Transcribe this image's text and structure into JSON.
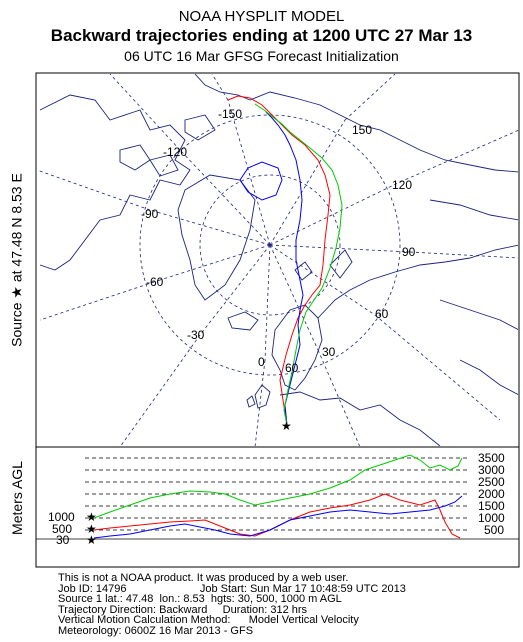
{
  "header": {
    "title": "NOAA HYSPLIT MODEL",
    "subtitle": "Backward trajectories ending at 1200 UTC 27 Mar 13",
    "init": "06 UTC 16 Mar    GFSG  Forecast Initialization"
  },
  "side_label": "Source ★ at   47.48 N    8.53 E",
  "vertical_axis_label": "Meters AGL",
  "map": {
    "longitude_labels": [
      "-150",
      "150",
      "-120",
      "120",
      "-90",
      "90",
      "-60",
      "60",
      "-30",
      "30",
      "0",
      "60"
    ],
    "source_marker": "★",
    "colors": {
      "traj_1": "#ff0000",
      "traj_2": "#0000ff",
      "traj_3": "#00cc00",
      "coast": "#1a237e",
      "grid": "#1a237e"
    }
  },
  "profile": {
    "right_ticks": [
      "3500",
      "3000",
      "2500",
      "2000",
      "1500",
      "1000",
      "500"
    ],
    "left_ticks": [
      "1000",
      "500",
      "30"
    ],
    "heights_m": [
      30,
      500,
      1000
    ],
    "marker": "★"
  },
  "footer": {
    "lines": [
      "This is not a NOAA product. It was produced by a web user.",
      "Job ID: 14796                        Job Start: Sun Mar 17 10:48:59 UTC 2013",
      "Source 1 lat.: 47.48  lon.: 8.53  hgts: 30, 500, 1000 m AGL",
      "Trajectory Direction: Backward     Duration: 312 hrs",
      "Vertical Motion Calculation Method:      Model Vertical Velocity",
      "Meteorology: 0600Z 16 Mar 2013 - GFS"
    ]
  }
}
